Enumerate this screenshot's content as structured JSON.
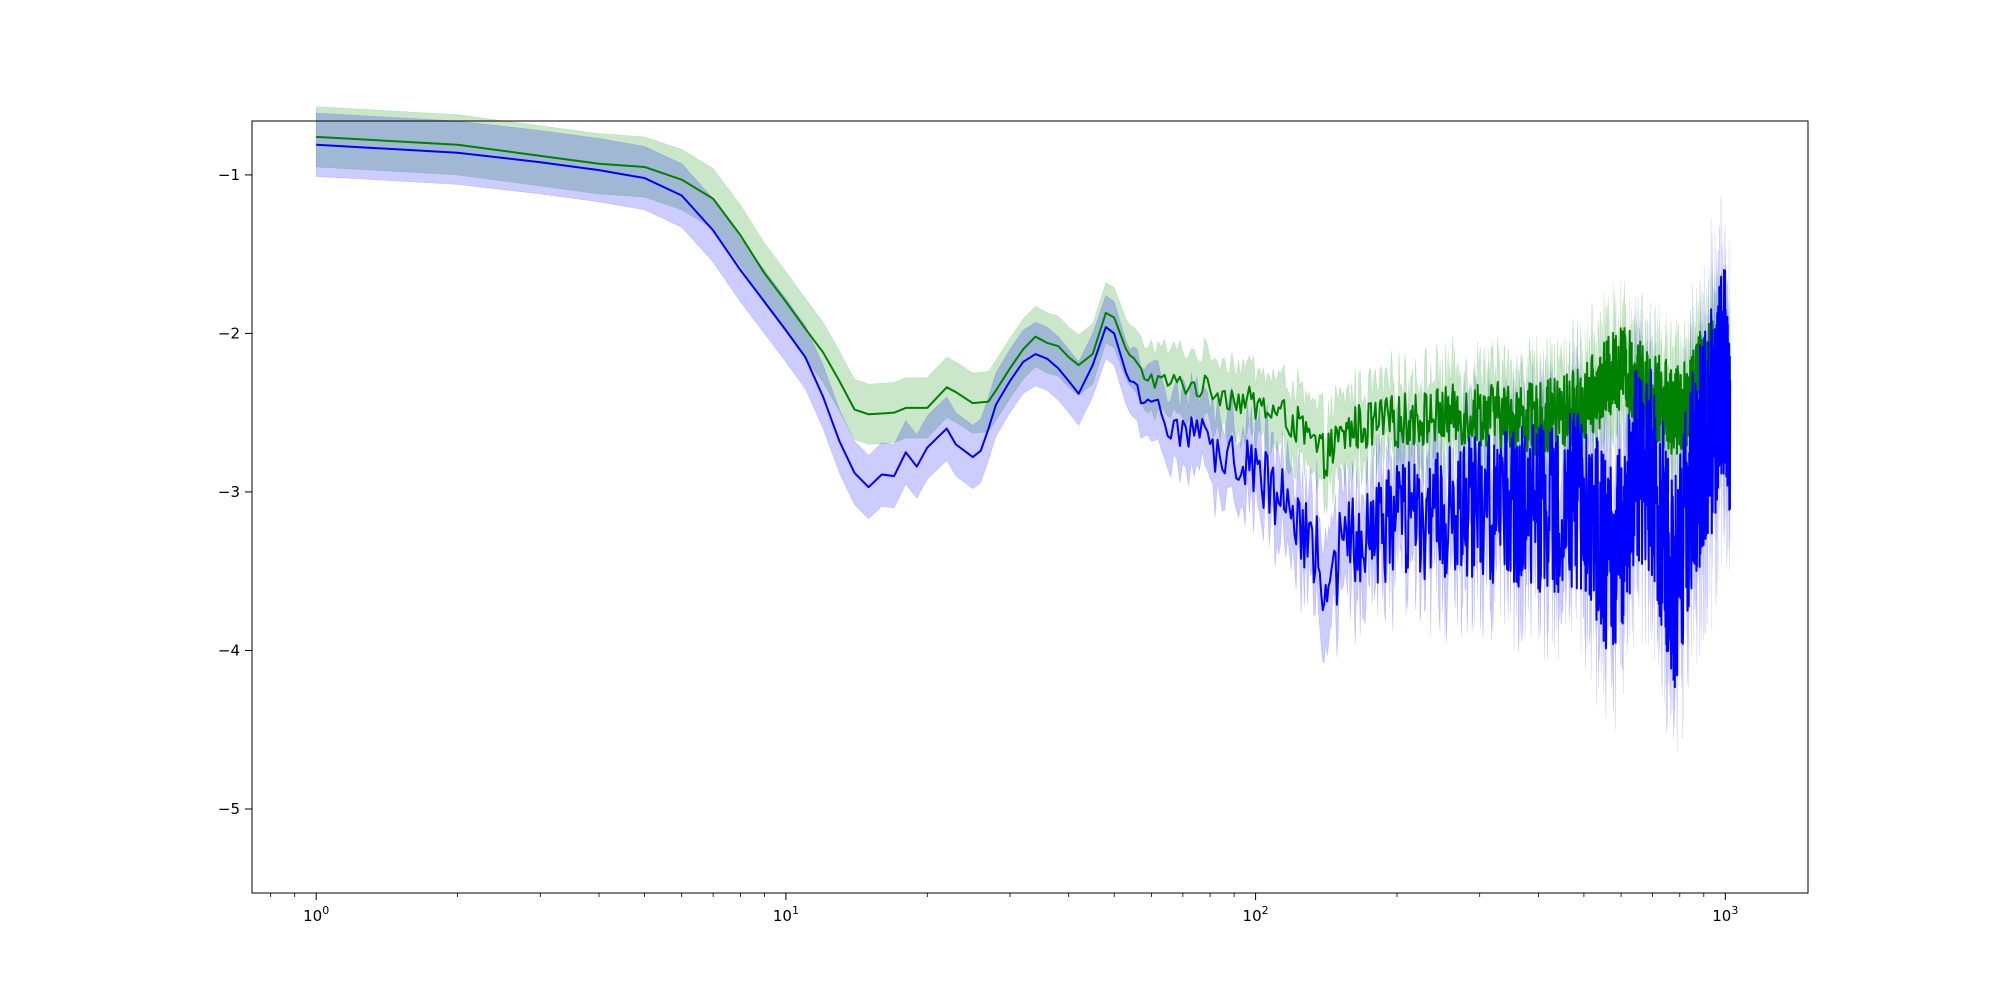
{
  "chart_data": {
    "type": "line",
    "xscale": "log",
    "xlim": [
      0.73,
      1500
    ],
    "ylim": [
      -5.53,
      -0.66
    ],
    "grid": false,
    "legend": "none",
    "x_ticks": [
      {
        "value": 1,
        "base": "10",
        "exp": "0"
      },
      {
        "value": 10,
        "base": "10",
        "exp": "1"
      },
      {
        "value": 100,
        "base": "10",
        "exp": "2"
      },
      {
        "value": 1000,
        "base": "10",
        "exp": "3"
      }
    ],
    "y_ticks": [
      {
        "value": -1,
        "label": "−1"
      },
      {
        "value": -2,
        "label": "−2"
      },
      {
        "value": -3,
        "label": "−3"
      },
      {
        "value": -4,
        "label": "−4"
      },
      {
        "value": -5,
        "label": "−5"
      }
    ],
    "series": [
      {
        "color": "#008000",
        "band_color": "#2ca02c",
        "band_opacity": 0.25,
        "band_offset_lower": -0.19,
        "band_offset_upper": 0.19,
        "noise_start_x": 55,
        "noise_amplitude_at_start": 0.05,
        "noise_amplitude_at_end": 0.32,
        "anchors": [
          [
            1,
            -0.76
          ],
          [
            2,
            -0.81
          ],
          [
            3,
            -0.88
          ],
          [
            4,
            -0.93
          ],
          [
            5,
            -0.95
          ],
          [
            6,
            -1.03
          ],
          [
            7,
            -1.15
          ],
          [
            8,
            -1.38
          ],
          [
            9,
            -1.62
          ],
          [
            10,
            -1.8
          ],
          [
            11,
            -1.97
          ],
          [
            12,
            -2.12
          ],
          [
            13,
            -2.3
          ],
          [
            14,
            -2.48
          ],
          [
            15,
            -2.51
          ],
          [
            17,
            -2.5
          ],
          [
            18,
            -2.47
          ],
          [
            20,
            -2.47
          ],
          [
            22,
            -2.34
          ],
          [
            23,
            -2.37
          ],
          [
            25,
            -2.44
          ],
          [
            27,
            -2.43
          ],
          [
            28,
            -2.36
          ],
          [
            30,
            -2.22
          ],
          [
            32,
            -2.1
          ],
          [
            34,
            -2.02
          ],
          [
            36,
            -2.06
          ],
          [
            38,
            -2.08
          ],
          [
            40,
            -2.15
          ],
          [
            42,
            -2.2
          ],
          [
            45,
            -2.13
          ],
          [
            48,
            -1.87
          ],
          [
            50,
            -1.9
          ],
          [
            53,
            -2.1
          ],
          [
            57,
            -2.25
          ],
          [
            62,
            -2.3
          ],
          [
            70,
            -2.32
          ],
          [
            80,
            -2.35
          ],
          [
            100,
            -2.45
          ],
          [
            120,
            -2.55
          ],
          [
            140,
            -2.78
          ],
          [
            160,
            -2.6
          ],
          [
            200,
            -2.55
          ],
          [
            300,
            -2.5
          ],
          [
            400,
            -2.55
          ],
          [
            500,
            -2.45
          ],
          [
            600,
            -2.2
          ],
          [
            700,
            -2.4
          ],
          [
            800,
            -2.5
          ],
          [
            900,
            -2.25
          ],
          [
            1000,
            -2.15
          ],
          [
            1024,
            -2.45
          ]
        ]
      },
      {
        "color": "#0000ff",
        "band_color": "#0000ff",
        "band_opacity": 0.2,
        "band_offset_lower": -0.2,
        "band_offset_upper": 0.2,
        "noise_start_x": 55,
        "noise_amplitude_at_start": 0.08,
        "noise_amplitude_at_end": 0.75,
        "anchors": [
          [
            1,
            -0.81
          ],
          [
            2,
            -0.86
          ],
          [
            3,
            -0.92
          ],
          [
            4,
            -0.97
          ],
          [
            5,
            -1.02
          ],
          [
            6,
            -1.13
          ],
          [
            7,
            -1.35
          ],
          [
            8,
            -1.6
          ],
          [
            9,
            -1.8
          ],
          [
            10,
            -1.98
          ],
          [
            11,
            -2.15
          ],
          [
            12,
            -2.4
          ],
          [
            13,
            -2.68
          ],
          [
            14,
            -2.88
          ],
          [
            15,
            -2.97
          ],
          [
            16,
            -2.89
          ],
          [
            17,
            -2.9
          ],
          [
            18,
            -2.75
          ],
          [
            19,
            -2.84
          ],
          [
            20,
            -2.72
          ],
          [
            22,
            -2.6
          ],
          [
            23,
            -2.7
          ],
          [
            25,
            -2.78
          ],
          [
            26,
            -2.74
          ],
          [
            27,
            -2.6
          ],
          [
            28,
            -2.45
          ],
          [
            30,
            -2.3
          ],
          [
            32,
            -2.18
          ],
          [
            34,
            -2.13
          ],
          [
            36,
            -2.16
          ],
          [
            38,
            -2.22
          ],
          [
            40,
            -2.3
          ],
          [
            42,
            -2.38
          ],
          [
            45,
            -2.2
          ],
          [
            48,
            -1.96
          ],
          [
            50,
            -2.0
          ],
          [
            53,
            -2.25
          ],
          [
            57,
            -2.45
          ],
          [
            62,
            -2.5
          ],
          [
            70,
            -2.6
          ],
          [
            80,
            -2.68
          ],
          [
            100,
            -2.9
          ],
          [
            120,
            -3.05
          ],
          [
            140,
            -3.55
          ],
          [
            160,
            -3.3
          ],
          [
            200,
            -3.2
          ],
          [
            300,
            -3.1
          ],
          [
            400,
            -3.1
          ],
          [
            500,
            -3.05
          ],
          [
            580,
            -3.5
          ],
          [
            650,
            -2.8
          ],
          [
            700,
            -2.9
          ],
          [
            780,
            -3.6
          ],
          [
            850,
            -2.9
          ],
          [
            950,
            -2.5
          ],
          [
            1000,
            -2.3
          ],
          [
            1024,
            -2.45
          ]
        ]
      }
    ]
  }
}
